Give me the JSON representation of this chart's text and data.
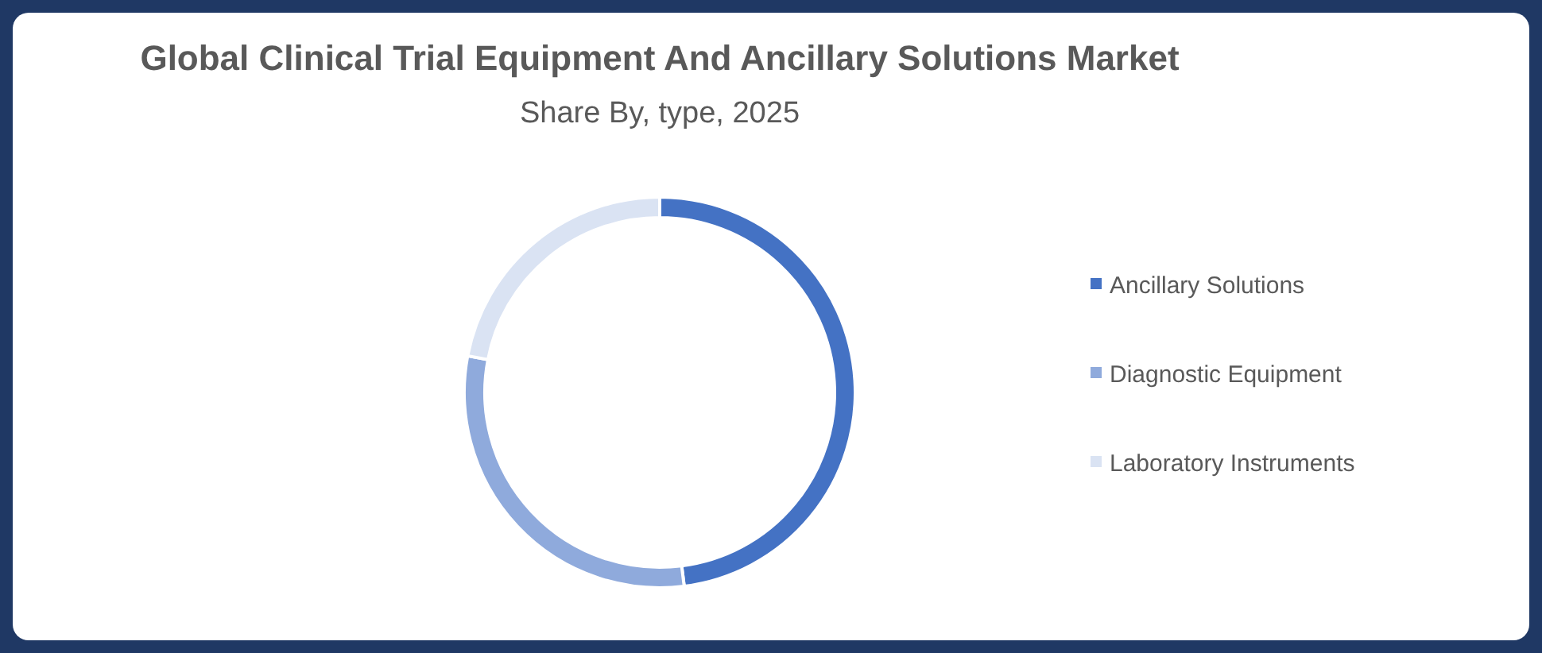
{
  "chart_data": {
    "type": "donut",
    "title": "Global Clinical Trial Equipment And Ancillary Solutions Market",
    "subtitle": "Share By, type, 2025",
    "categories": [
      "Ancillary Solutions",
      "Diagnostic Equipment",
      "Laboratory Instruments"
    ],
    "values": [
      48,
      30,
      22
    ],
    "colors": [
      "#4472c4",
      "#8faadc",
      "#dae3f3"
    ],
    "legend": "right"
  }
}
